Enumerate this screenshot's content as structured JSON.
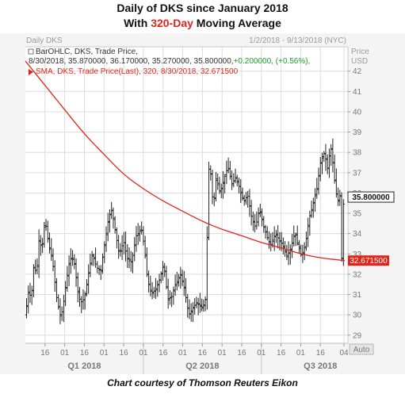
{
  "header": {
    "title_line1": "Daily of DKS since January 2018",
    "title_line2_prefix": "With ",
    "title_line2_highlight": "320-Day",
    "title_line2_suffix": " Moving Average"
  },
  "caption": "Chart courtesy of Thomson Reuters Eikon",
  "colors": {
    "sma": "#e0251b",
    "bars": "#222222",
    "grid": "#dcdcdc",
    "accent": "#e0251b",
    "panel_bg": "#f4f4f4"
  },
  "chart_data": {
    "type": "line",
    "panel_title": "Daily DKS",
    "date_range_label": "1/2/2018 - 9/13/2018 (NYC)",
    "axis_header": [
      "Price",
      "USD"
    ],
    "scale_button": "Auto",
    "legend": {
      "ohlc_name": "BarOHLC, DKS, Trade Price,",
      "ohlc_values": "8/30/2018, 35.870000, 36.170000, 35.270000, 35.800000,",
      "ohlc_change": "+0.200000, (+0.56%),",
      "sma_text": "SMA, DKS, Trade Price(Last), 320, 8/30/2018, 32.671500"
    },
    "price_label": "35.800000",
    "sma_label": "32.671500",
    "ylim": [
      28.6,
      43.2
    ],
    "y_ticks": [
      29,
      30,
      31,
      32,
      33,
      34,
      35,
      36,
      37,
      38,
      39,
      40,
      41,
      42
    ],
    "x_tick_labels": [
      "16",
      "01",
      "16",
      "01",
      "16",
      "01",
      "16",
      "01",
      "16",
      "01",
      "16",
      "01",
      "16",
      "01",
      "16",
      "04"
    ],
    "x_tick_positions": [
      0.5,
      1.0,
      1.5,
      2.0,
      2.5,
      3.0,
      3.5,
      4.0,
      4.5,
      5.0,
      5.5,
      6.0,
      6.5,
      7.0,
      7.5,
      8.1
    ],
    "group_labels": [
      {
        "label": "Q1 2018",
        "month": 1.5
      },
      {
        "label": "Q2 2018",
        "month": 4.5
      },
      {
        "label": "Q3 2018",
        "month": 7.5
      }
    ],
    "group_separators": [
      3.0,
      6.0
    ],
    "xlim": [
      0.0,
      8.2
    ],
    "x_unit": "months since January 1, 2018",
    "price_anchors": [
      [
        0.0,
        30.0
      ],
      [
        0.08,
        31.2
      ],
      [
        0.15,
        30.8
      ],
      [
        0.22,
        32.6
      ],
      [
        0.28,
        31.9
      ],
      [
        0.35,
        33.8
      ],
      [
        0.42,
        33.2
      ],
      [
        0.5,
        34.7
      ],
      [
        0.58,
        33.6
      ],
      [
        0.65,
        33.0
      ],
      [
        0.72,
        32.2
      ],
      [
        0.78,
        31.0
      ],
      [
        0.85,
        30.3
      ],
      [
        0.9,
        29.8
      ],
      [
        0.97,
        30.6
      ],
      [
        1.03,
        31.5
      ],
      [
        1.1,
        32.4
      ],
      [
        1.18,
        32.9
      ],
      [
        1.25,
        32.5
      ],
      [
        1.32,
        31.3
      ],
      [
        1.4,
        30.6
      ],
      [
        1.5,
        30.8
      ],
      [
        1.6,
        32.0
      ],
      [
        1.7,
        33.0
      ],
      [
        1.82,
        32.3
      ],
      [
        1.92,
        32.2
      ],
      [
        2.02,
        33.6
      ],
      [
        2.12,
        34.8
      ],
      [
        2.2,
        35.2
      ],
      [
        2.28,
        34.2
      ],
      [
        2.38,
        33.0
      ],
      [
        2.5,
        33.6
      ],
      [
        2.6,
        32.7
      ],
      [
        2.7,
        32.6
      ],
      [
        2.82,
        33.9
      ],
      [
        2.95,
        34.2
      ],
      [
        3.02,
        33.4
      ],
      [
        3.1,
        31.8
      ],
      [
        3.2,
        31.0
      ],
      [
        3.32,
        31.3
      ],
      [
        3.42,
        31.8
      ],
      [
        3.52,
        32.5
      ],
      [
        3.62,
        30.8
      ],
      [
        3.72,
        30.9
      ],
      [
        3.82,
        31.5
      ],
      [
        3.95,
        32.0
      ],
      [
        4.05,
        31.2
      ],
      [
        4.15,
        30.0
      ],
      [
        4.25,
        30.3
      ],
      [
        4.35,
        30.6
      ],
      [
        4.5,
        30.3
      ],
      [
        4.58,
        30.8
      ],
      [
        4.68,
        38.3
      ],
      [
        4.72,
        36.5
      ],
      [
        4.78,
        35.3
      ],
      [
        4.85,
        36.8
      ],
      [
        4.95,
        36.0
      ],
      [
        5.05,
        36.7
      ],
      [
        5.15,
        37.3
      ],
      [
        5.25,
        36.4
      ],
      [
        5.35,
        36.8
      ],
      [
        5.45,
        36.2
      ],
      [
        5.55,
        35.6
      ],
      [
        5.65,
        35.9
      ],
      [
        5.75,
        34.8
      ],
      [
        5.85,
        34.3
      ],
      [
        5.95,
        35.2
      ],
      [
        6.05,
        34.4
      ],
      [
        6.15,
        33.8
      ],
      [
        6.25,
        33.4
      ],
      [
        6.35,
        34.0
      ],
      [
        6.45,
        33.7
      ],
      [
        6.55,
        33.4
      ],
      [
        6.65,
        32.9
      ],
      [
        6.75,
        33.3
      ],
      [
        6.85,
        34.1
      ],
      [
        6.92,
        33.5
      ],
      [
        7.02,
        32.9
      ],
      [
        7.12,
        33.5
      ],
      [
        7.22,
        34.8
      ],
      [
        7.32,
        35.5
      ],
      [
        7.42,
        36.3
      ],
      [
        7.5,
        37.5
      ],
      [
        7.6,
        38.0
      ],
      [
        7.68,
        37.2
      ],
      [
        7.76,
        38.3
      ],
      [
        7.82,
        37.4
      ],
      [
        7.88,
        36.2
      ],
      [
        7.94,
        35.6
      ],
      [
        8.0,
        35.9
      ],
      [
        8.04,
        32.8
      ],
      [
        8.08,
        35.4
      ],
      [
        8.12,
        35.8
      ]
    ],
    "sma_points": [
      [
        0.0,
        42.5
      ],
      [
        0.5,
        41.3
      ],
      [
        1.0,
        40.1
      ],
      [
        1.5,
        38.9
      ],
      [
        2.0,
        37.9
      ],
      [
        2.5,
        36.9
      ],
      [
        3.0,
        36.2
      ],
      [
        3.5,
        35.6
      ],
      [
        4.0,
        35.1
      ],
      [
        4.5,
        34.6
      ],
      [
        5.0,
        34.2
      ],
      [
        5.5,
        33.9
      ],
      [
        6.0,
        33.55
      ],
      [
        6.5,
        33.3
      ],
      [
        7.0,
        33.0
      ],
      [
        7.5,
        32.8
      ],
      [
        8.12,
        32.67
      ]
    ],
    "grid": true
  }
}
